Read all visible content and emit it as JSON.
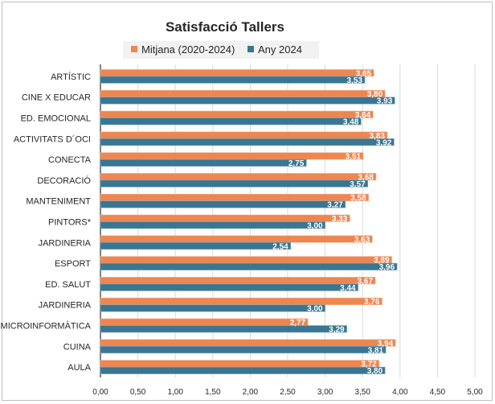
{
  "chart_data": {
    "type": "bar",
    "orientation": "horizontal",
    "title": "Satisfacció Tallers",
    "categories": [
      "ARTÍSTIC",
      "CINE X EDUCAR",
      "ED. EMOCIONAL",
      "ACTIVITATS D´OCI",
      "CONECTA",
      "DECORACIÓ",
      "MANTENIMENT",
      "PINTORS*",
      "JARDINERIA",
      "ESPORT",
      "ED. SALUT",
      "JARDINERIA",
      "MICROINFORMÀTICA",
      "CUINA",
      "AULA"
    ],
    "series": [
      {
        "name": "Mitjana (2020-2024)",
        "color": "#ED8650",
        "values": [
          3.65,
          3.8,
          3.64,
          3.83,
          3.51,
          3.68,
          3.58,
          3.33,
          3.63,
          3.89,
          3.67,
          3.76,
          2.77,
          3.94,
          3.72
        ],
        "labels": [
          "3,65",
          "3,80",
          "3,64",
          "3,83",
          "3,51",
          "3,68",
          "3,58",
          "3,33",
          "3,63",
          "3,89",
          "3,67",
          "3,76",
          "2,77",
          "3,94",
          "3,72"
        ]
      },
      {
        "name": "Any 2024",
        "color": "#3A7691",
        "values": [
          3.53,
          3.93,
          3.48,
          3.92,
          2.75,
          3.57,
          3.27,
          3.0,
          2.54,
          3.96,
          3.44,
          3.0,
          3.29,
          3.81,
          3.8
        ],
        "labels": [
          "3,53",
          "3,93",
          "3,48",
          "3,92",
          "2,75",
          "3,57",
          "3,27",
          "3,00",
          "2,54",
          "3,96",
          "3,44",
          "3,00",
          "3,29",
          "3,81",
          "3,80"
        ]
      }
    ],
    "xlim": [
      0,
      5
    ],
    "xticks": [
      "0,00",
      "0,50",
      "1,00",
      "1,50",
      "2,00",
      "2,50",
      "3,00",
      "3,50",
      "4,00",
      "4,50",
      "5,00"
    ],
    "grid": true,
    "legend_position": "top"
  }
}
